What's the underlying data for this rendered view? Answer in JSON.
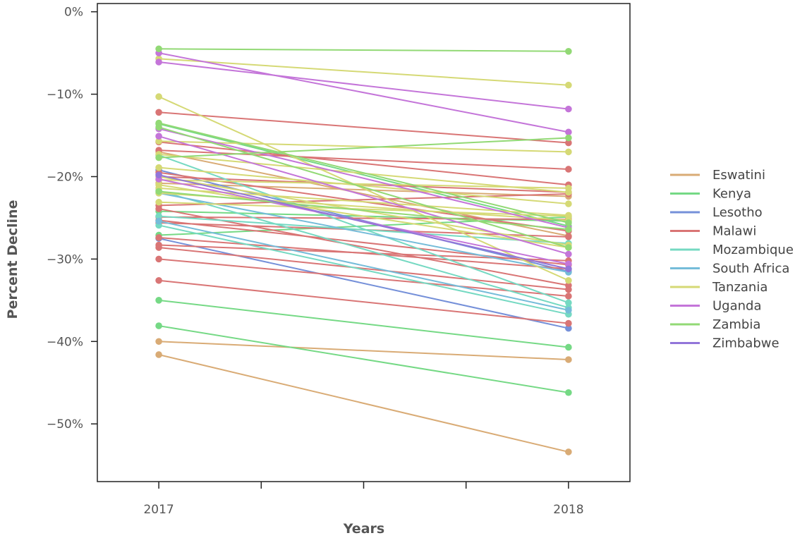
{
  "chart_data": {
    "type": "line",
    "title": "",
    "xlabel": "Years",
    "ylabel": "Percent Decline",
    "x": [
      "2017",
      "2018"
    ],
    "xlim": [
      2016.85,
      2018.15
    ],
    "ylim": [
      -57,
      1
    ],
    "y_ticks": [
      {
        "value": 0,
        "label": "0%"
      },
      {
        "value": -10,
        "label": "−10%"
      },
      {
        "value": -20,
        "label": "−20%"
      },
      {
        "value": -30,
        "label": "−30%"
      },
      {
        "value": -40,
        "label": "−40%"
      },
      {
        "value": -50,
        "label": "−50%"
      }
    ],
    "x_ticks": [
      {
        "value": 2017,
        "label": "2017"
      },
      {
        "value": 2017.25,
        "label": ""
      },
      {
        "value": 2017.5,
        "label": ""
      },
      {
        "value": 2017.75,
        "label": ""
      },
      {
        "value": 2018,
        "label": "2018"
      }
    ],
    "grid": false,
    "legend_position": "right",
    "series": [
      {
        "name": "Eswatini",
        "color": "#d9ab75",
        "lines": [
          [
            -41.6,
            -53.4
          ],
          [
            -40.0,
            -42.2
          ],
          [
            -17.0,
            -27.2
          ],
          [
            -20.8,
            -22.4
          ]
        ]
      },
      {
        "name": "Kenya",
        "color": "#75d985",
        "lines": [
          [
            -38.1,
            -46.2
          ],
          [
            -35.0,
            -40.7
          ],
          [
            -24.2,
            -25.4
          ],
          [
            -27.1,
            -24.9
          ],
          [
            -13.6,
            -26.0
          ]
        ]
      },
      {
        "name": "Lesotho",
        "color": "#7590d9",
        "lines": [
          [
            -27.5,
            -38.4
          ],
          [
            -19.2,
            -31.5
          ]
        ]
      },
      {
        "name": "Malawi",
        "color": "#d97575",
        "lines": [
          [
            -32.6,
            -37.8
          ],
          [
            -30.0,
            -34.5
          ],
          [
            -28.6,
            -33.7
          ],
          [
            -28.3,
            -30.2
          ],
          [
            -27.4,
            -31.2
          ],
          [
            -25.3,
            -30.7
          ],
          [
            -24.9,
            -25.2
          ],
          [
            -25.6,
            -27.3
          ],
          [
            -23.9,
            -33.2
          ],
          [
            -23.5,
            -22.1
          ],
          [
            -20.0,
            -21.9
          ],
          [
            -16.8,
            -19.1
          ],
          [
            -12.2,
            -15.9
          ],
          [
            -15.8,
            -21.0
          ],
          [
            -19.5,
            -26.6
          ]
        ]
      },
      {
        "name": "Mozambique",
        "color": "#75d9c2",
        "lines": [
          [
            -25.9,
            -36.7
          ],
          [
            -21.7,
            -35.9
          ],
          [
            -17.4,
            -35.3
          ],
          [
            -24.8,
            -28.1
          ]
        ]
      },
      {
        "name": "South Africa",
        "color": "#75bcd9",
        "lines": [
          [
            -25.4,
            -36.2
          ],
          [
            -22.0,
            -31.6
          ]
        ]
      },
      {
        "name": "Tanzania",
        "color": "#d5d975",
        "lines": [
          [
            -10.3,
            -32.6
          ],
          [
            -5.7,
            -8.9
          ],
          [
            -15.7,
            -17.0
          ],
          [
            -18.9,
            -23.3
          ],
          [
            -20.4,
            -21.4
          ],
          [
            -21.4,
            -24.7
          ],
          [
            -22.0,
            -25.3
          ],
          [
            -23.1,
            -24.8
          ],
          [
            -21.0,
            -28.6
          ],
          [
            -17.3,
            -21.9
          ],
          [
            -20.0,
            -28.3
          ]
        ]
      },
      {
        "name": "Uganda",
        "color": "#c475d9",
        "lines": [
          [
            -5.0,
            -14.6
          ],
          [
            -6.1,
            -11.8
          ],
          [
            -14.2,
            -26.2
          ],
          [
            -15.1,
            -29.4
          ],
          [
            -20.3,
            -30.6
          ]
        ]
      },
      {
        "name": "Zambia",
        "color": "#92d975",
        "lines": [
          [
            -4.5,
            -4.8
          ],
          [
            -13.5,
            -25.6
          ],
          [
            -17.7,
            -15.3
          ],
          [
            -14.0,
            -28.6
          ],
          [
            -21.8,
            -26.4
          ]
        ]
      },
      {
        "name": "Zimbabwe",
        "color": "#9275d9",
        "lines": [
          [
            -19.8,
            -31.2
          ]
        ]
      }
    ]
  }
}
